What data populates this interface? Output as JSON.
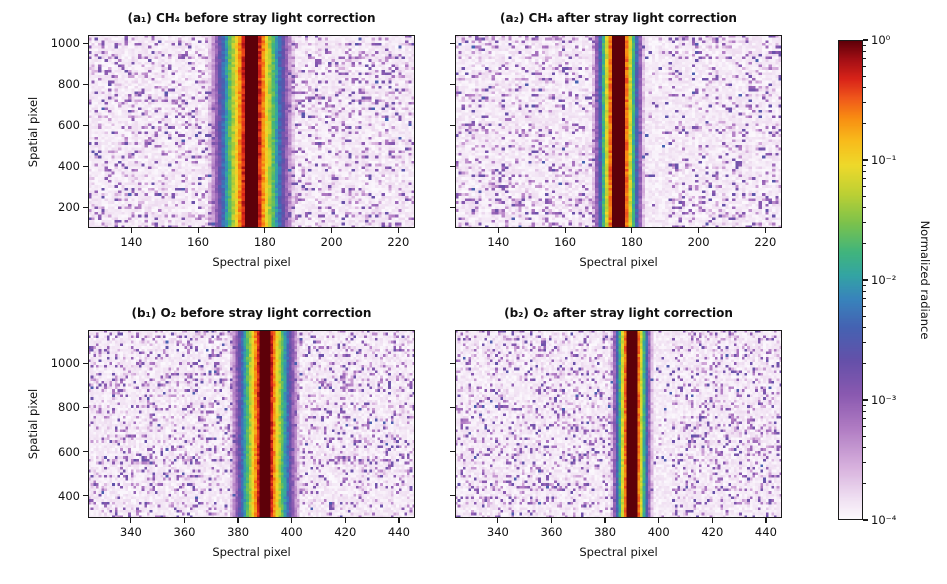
{
  "figure": {
    "background": "#ffffff"
  },
  "chart_data": {
    "type": "heatmap",
    "description": "2x2 grid of spectrometer detector images (spectral vs spatial pixel) before and after stray light correction, log-scaled normalized radiance",
    "panels": [
      {
        "id": "a1",
        "title": "(a₁) CH₄ before stray light correction",
        "xlabel": "Spectral pixel",
        "ylabel": "Spatial pixel",
        "x_range": [
          127,
          225
        ],
        "y_range": [
          100,
          1040
        ],
        "x_ticks": [
          140,
          160,
          180,
          200,
          220
        ],
        "y_ticks": [
          200,
          400,
          600,
          800,
          1000
        ],
        "show_y_tick_labels": true,
        "stripe": {
          "center": 176,
          "core_halfwidth": 1.6,
          "log_slope": 0.34
        },
        "noise": {
          "speckle_prob": 0.22
        },
        "clean_right": false,
        "grid": {
          "cols": 98,
          "rows": 72
        },
        "seed": 11
      },
      {
        "id": "a2",
        "title": "(a₂) CH₄ after stray light correction",
        "xlabel": "Spectral pixel",
        "ylabel": "",
        "x_range": [
          127,
          225
        ],
        "y_range": [
          100,
          1040
        ],
        "x_ticks": [
          140,
          160,
          180,
          200,
          220
        ],
        "y_ticks": [
          200,
          400,
          600,
          800,
          1000
        ],
        "show_y_tick_labels": false,
        "stripe": {
          "center": 176,
          "core_halfwidth": 1.6,
          "log_slope": 0.62
        },
        "noise": {
          "speckle_prob": 0.22
        },
        "clean_right": true,
        "grid": {
          "cols": 98,
          "rows": 72
        },
        "seed": 22
      },
      {
        "id": "b1",
        "title": "(b₁) O₂ before stray light correction",
        "xlabel": "Spectral pixel",
        "ylabel": "Spatial pixel",
        "x_range": [
          324,
          446
        ],
        "y_range": [
          300,
          1150
        ],
        "x_ticks": [
          340,
          360,
          380,
          400,
          420,
          440
        ],
        "y_ticks": [
          400,
          600,
          800,
          1000
        ],
        "show_y_tick_labels": true,
        "stripe": {
          "center": 390,
          "core_halfwidth": 1.6,
          "log_slope": 0.34
        },
        "noise": {
          "speckle_prob": 0.22
        },
        "clean_right": false,
        "grid": {
          "cols": 122,
          "rows": 70
        },
        "seed": 33
      },
      {
        "id": "b2",
        "title": "(b₂) O₂ after stray light correction",
        "xlabel": "Spectral pixel",
        "ylabel": "",
        "x_range": [
          324,
          446
        ],
        "y_range": [
          300,
          1150
        ],
        "x_ticks": [
          340,
          360,
          380,
          400,
          420,
          440
        ],
        "y_ticks": [
          400,
          600,
          800,
          1000
        ],
        "show_y_tick_labels": false,
        "stripe": {
          "center": 390,
          "core_halfwidth": 1.6,
          "log_slope": 0.62
        },
        "noise": {
          "speckle_prob": 0.22
        },
        "clean_right": true,
        "grid": {
          "cols": 122,
          "rows": 70
        },
        "seed": 44
      }
    ],
    "colorbar": {
      "label": "Normalized radiance",
      "scale": "log",
      "range_log": [
        -4,
        0
      ],
      "ticks": [
        {
          "log": 0,
          "label": "10⁰"
        },
        {
          "log": -1,
          "label": "10⁻¹"
        },
        {
          "log": -2,
          "label": "10⁻²"
        },
        {
          "log": -3,
          "label": "10⁻³"
        },
        {
          "log": -4,
          "label": "10⁻⁴"
        }
      ]
    },
    "colormap": {
      "stops": [
        [
          0.0,
          "#fcf9fd"
        ],
        [
          0.04,
          "#f1e2f3"
        ],
        [
          0.11,
          "#d7b0dd"
        ],
        [
          0.19,
          "#b07cc3"
        ],
        [
          0.26,
          "#8a59b0"
        ],
        [
          0.33,
          "#6550a9"
        ],
        [
          0.4,
          "#4562b2"
        ],
        [
          0.46,
          "#3884bc"
        ],
        [
          0.51,
          "#33a4a4"
        ],
        [
          0.56,
          "#41b57c"
        ],
        [
          0.62,
          "#7cc24c"
        ],
        [
          0.68,
          "#bcd034"
        ],
        [
          0.74,
          "#eed92b"
        ],
        [
          0.79,
          "#f8bc1c"
        ],
        [
          0.84,
          "#f88c12"
        ],
        [
          0.88,
          "#f0581b"
        ],
        [
          0.92,
          "#d92419"
        ],
        [
          0.96,
          "#a50f15"
        ],
        [
          1.0,
          "#5e0009"
        ]
      ]
    }
  }
}
